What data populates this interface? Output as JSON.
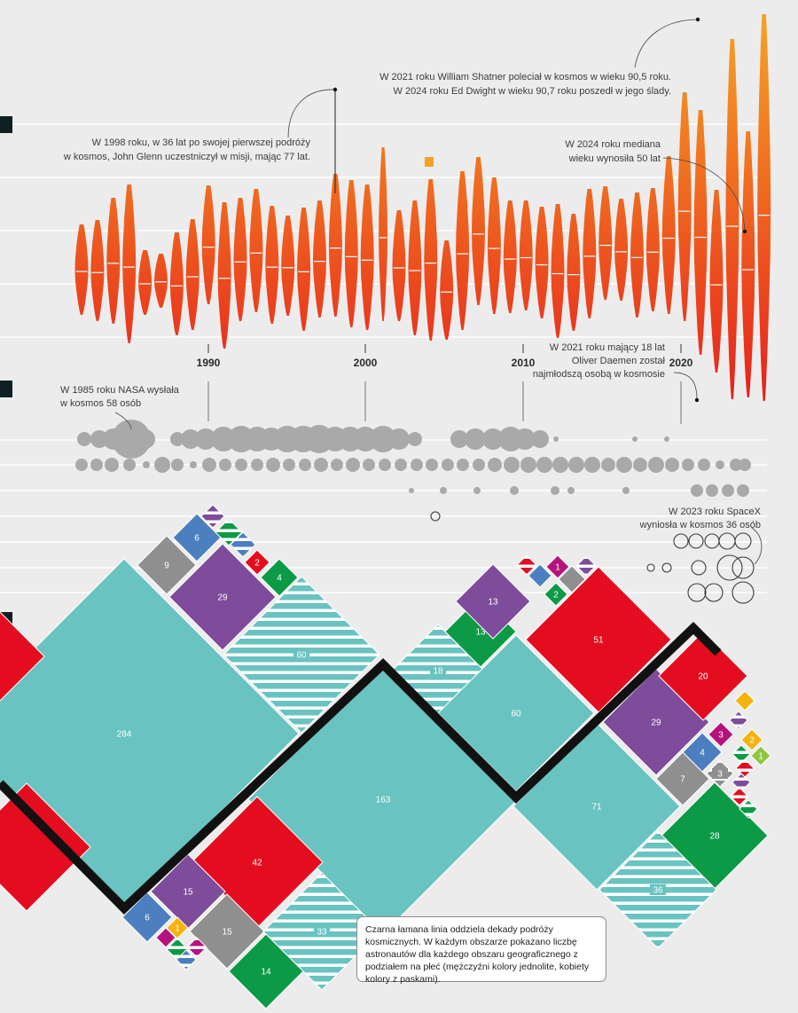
{
  "annotations": {
    "glenn": [
      "W 1998 roku, w 36 lat po swojej pierwszej podróży",
      "w kosmos, John Glenn uczestniczył w misji, mając 77 lat."
    ],
    "shatner": [
      "W 2021 roku William Shatner poleciał w kosmos w wieku 90,5 roku.",
      "W 2024 roku Ed Dwight w wieku 90,7 roku poszedł w jego ślady."
    ],
    "median": [
      "W 2024 roku mediana",
      "wieku wynosiła 50 lat"
    ],
    "daemen": [
      "W 2021 roku mający 18 lat",
      "Oliver Daemen został",
      "najmłodszą osobą w kosmosie"
    ],
    "nasa": [
      "W 1985 roku NASA wysłała",
      "w kosmos 58 osób"
    ],
    "spacex": [
      "W 2023 roku SpaceX",
      "wyniosła w kosmos 36 osób"
    ]
  },
  "legend_text": "Czarna łamana linia oddziela dekady podróży kosmicznych. W każdym obszarze pokazano liczbę astronautów dla każdego obszaru geograficznego z podziałem na płeć (mężczyźni kolory jednolite, kobiety kolory z paskami).",
  "colors": {
    "background": "#ececec",
    "violin_top": "#f4a328",
    "violin_bottom": "#e8251f",
    "bubble": "#a9a9a9",
    "teal": "#69c3c0",
    "red": "#e30d1f",
    "purple": "#7e4c9a",
    "gray": "#8f8f8f",
    "blue": "#4c7fc0",
    "green": "#0c9a46",
    "magenta": "#b5127c",
    "yellow": "#f5b30e",
    "lime": "#8dc63f",
    "line": "#111111"
  },
  "chart_data": [
    {
      "type": "violin",
      "xlabel": "",
      "ylabel": "",
      "x_ticks": [
        "1990",
        "2000",
        "2010",
        "2020"
      ],
      "median_age_2024": 50,
      "note_points": [
        {
          "year": 1998,
          "age": 77
        },
        {
          "year": 2021,
          "age": 90.5
        },
        {
          "year": 2024,
          "age": 90.7
        },
        {
          "year": 2021,
          "age": 18
        }
      ]
    },
    {
      "type": "bubble",
      "highlight": [
        {
          "year": 1985,
          "organisation": "NASA",
          "people": 58
        },
        {
          "year": 2023,
          "organisation": "SpaceX",
          "people": 36
        }
      ]
    },
    {
      "type": "treemap-diamond",
      "values": [
        284,
        163,
        60,
        60,
        71,
        51,
        42,
        36,
        33,
        29,
        29,
        28,
        20,
        18,
        15,
        15,
        14,
        13,
        13,
        9,
        7,
        6,
        6,
        4,
        4,
        3,
        3,
        2,
        2,
        2,
        1,
        1,
        1
      ]
    }
  ]
}
